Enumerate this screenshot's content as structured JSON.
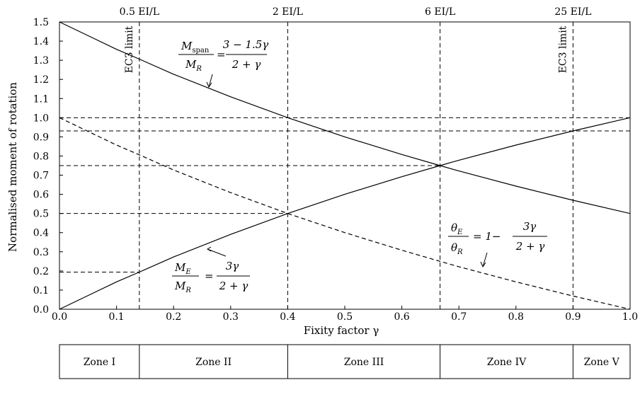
{
  "chart_data": {
    "type": "line",
    "xlabel": "Fixity factor γ",
    "ylabel": "Normalised moment of rotation",
    "xlim": [
      0,
      1
    ],
    "ylim": [
      0,
      1.5
    ],
    "x_ticks": [
      "0.0",
      "0.1",
      "0.2",
      "0.3",
      "0.4",
      "0.5",
      "0.6",
      "0.7",
      "0.8",
      "0.9",
      "1.0"
    ],
    "y_ticks": [
      "0.0",
      "0.1",
      "0.2",
      "0.3",
      "0.4",
      "0.5",
      "0.6",
      "0.7",
      "0.8",
      "0.9",
      "1.0",
      "1.1",
      "1.2",
      "1.3",
      "1.4",
      "1.5"
    ],
    "grid": false,
    "series": [
      {
        "style": "solid",
        "x": [
          0,
          0.1,
          0.14,
          0.2,
          0.3,
          0.4,
          0.5,
          0.6,
          0.667,
          0.7,
          0.8,
          0.9,
          1.0
        ],
        "y": [
          0,
          0.143,
          0.194,
          0.273,
          0.391,
          0.5,
          0.6,
          0.692,
          0.75,
          0.778,
          0.857,
          0.931,
          1.0
        ]
      },
      {
        "style": "solid",
        "x": [
          0,
          0.1,
          0.14,
          0.2,
          0.3,
          0.4,
          0.5,
          0.6,
          0.667,
          0.7,
          0.8,
          0.9,
          1.0
        ],
        "y": [
          1.5,
          1.357,
          1.306,
          1.227,
          1.109,
          1.0,
          0.9,
          0.808,
          0.75,
          0.722,
          0.643,
          0.569,
          0.5
        ]
      },
      {
        "style": "dashed",
        "x": [
          0,
          0.1,
          0.14,
          0.2,
          0.3,
          0.4,
          0.5,
          0.6,
          0.667,
          0.7,
          0.8,
          0.9,
          1.0
        ],
        "y": [
          1.0,
          0.857,
          0.806,
          0.727,
          0.609,
          0.5,
          0.4,
          0.308,
          0.25,
          0.222,
          0.143,
          0.069,
          0.0
        ]
      }
    ],
    "vertical_lines": [
      {
        "x": 0.14,
        "top_label": "0.5 EI/L",
        "side_label": "EC3 limit"
      },
      {
        "x": 0.4,
        "top_label": "2 EI/L"
      },
      {
        "x": 0.667,
        "top_label": "6 EI/L"
      },
      {
        "x": 0.9,
        "top_label": "25 EI/L",
        "side_label": "EC3 limit"
      }
    ],
    "horizontal_lines": [
      {
        "y": 1.0,
        "x_from": 0,
        "x_to": 1.0
      },
      {
        "y": 0.931,
        "x_from": 0,
        "x_to": 1.0
      },
      {
        "y": 0.75,
        "x_from": 0,
        "x_to": 0.667
      },
      {
        "y": 0.5,
        "x_from": 0,
        "x_to": 0.4
      },
      {
        "y": 0.194,
        "x_from": 0,
        "x_to": 0.14
      }
    ],
    "annotations": {
      "m_span": {
        "num_main": "M",
        "num_sub": "span",
        "den_main": "M",
        "den_sub": "R",
        "rhs_num": "3 − 1.5γ",
        "rhs_den": "2 + γ"
      },
      "m_e": {
        "num_main": "M",
        "num_sub": "E",
        "den_main": "M",
        "den_sub": "R",
        "rhs_num": "3γ",
        "rhs_den": "2 + γ"
      },
      "theta": {
        "num_main": "θ",
        "num_sub": "E",
        "den_main": "θ",
        "den_sub": "R",
        "lead": "= 1−",
        "rhs_num": "3γ",
        "rhs_den": "2 + γ"
      }
    },
    "zones": [
      {
        "label": "Zone I",
        "x_from": 0,
        "x_to": 0.14
      },
      {
        "label": "Zone II",
        "x_from": 0.14,
        "x_to": 0.4
      },
      {
        "label": "Zone III",
        "x_from": 0.4,
        "x_to": 0.667
      },
      {
        "label": "Zone IV",
        "x_from": 0.667,
        "x_to": 0.9
      },
      {
        "label": "Zone V",
        "x_from": 0.9,
        "x_to": 1.0
      }
    ]
  }
}
